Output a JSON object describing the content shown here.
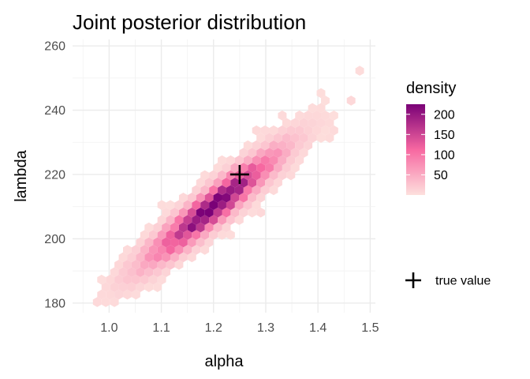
{
  "chart_data": {
    "type": "heatmap",
    "subtype": "hexbin",
    "title": "Joint posterior distribution",
    "xlabel": "alpha",
    "ylabel": "lambda",
    "xlim": [
      0.93,
      1.51
    ],
    "ylim": [
      177,
      262
    ],
    "x_ticks": [
      1.0,
      1.1,
      1.2,
      1.3,
      1.4,
      1.5
    ],
    "x_tick_labels": [
      "1.0",
      "1.1",
      "1.2",
      "1.3",
      "1.4",
      "1.5"
    ],
    "y_ticks": [
      180,
      200,
      220,
      240,
      260
    ],
    "y_tick_labels": [
      "180",
      "200",
      "220",
      "240",
      "260"
    ],
    "grid": true,
    "density_distribution": {
      "center": [
        1.2,
        210
      ],
      "sd_alpha": 0.08,
      "sd_lambda": 11,
      "correlation": 0.93,
      "peak_density": 220
    },
    "color_scale": {
      "name": "density",
      "low": "#fde0dd",
      "mid": "#f768a1",
      "high": "#7a0177",
      "limits": [
        0,
        225
      ],
      "breaks": [
        50,
        100,
        150,
        200
      ],
      "break_labels": [
        "50",
        "100",
        "150",
        "200"
      ]
    },
    "true_value": {
      "alpha": 1.25,
      "lambda": 220,
      "label": "true value"
    },
    "legend_position": "right"
  }
}
